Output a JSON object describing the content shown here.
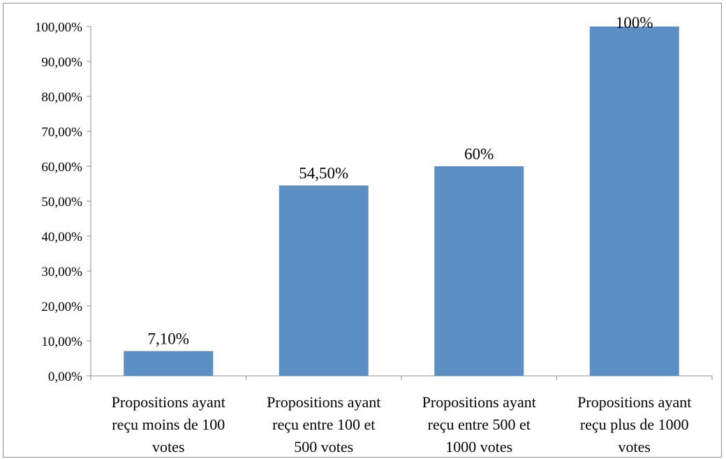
{
  "chart_data": {
    "type": "bar",
    "title": "",
    "xlabel": "",
    "ylabel": "",
    "categories": [
      [
        "Propositions ayant",
        "reçu moins de 100",
        "votes"
      ],
      [
        "Propositions ayant",
        "reçu entre 100 et",
        "500 votes"
      ],
      [
        "Propositions ayant",
        "reçu entre 500 et",
        "1000 votes"
      ],
      [
        "Propositions ayant",
        "reçu plus de 1000",
        "votes"
      ]
    ],
    "values": [
      7.1,
      54.5,
      60,
      100
    ],
    "data_labels": [
      "7,10%",
      "54,50%",
      "60%",
      "100%"
    ],
    "ylim": [
      0,
      100
    ],
    "y_ticks": [
      0,
      10,
      20,
      30,
      40,
      50,
      60,
      70,
      80,
      90,
      100
    ],
    "y_tick_labels": [
      "0,00%",
      "10,00%",
      "20,00%",
      "30,00%",
      "40,00%",
      "50,00%",
      "60,00%",
      "70,00%",
      "80,00%",
      "90,00%",
      "100,00%"
    ],
    "grid": false,
    "legend": "none",
    "bar_color": "#5b8fc4",
    "axis_color": "#8c8c8c"
  }
}
